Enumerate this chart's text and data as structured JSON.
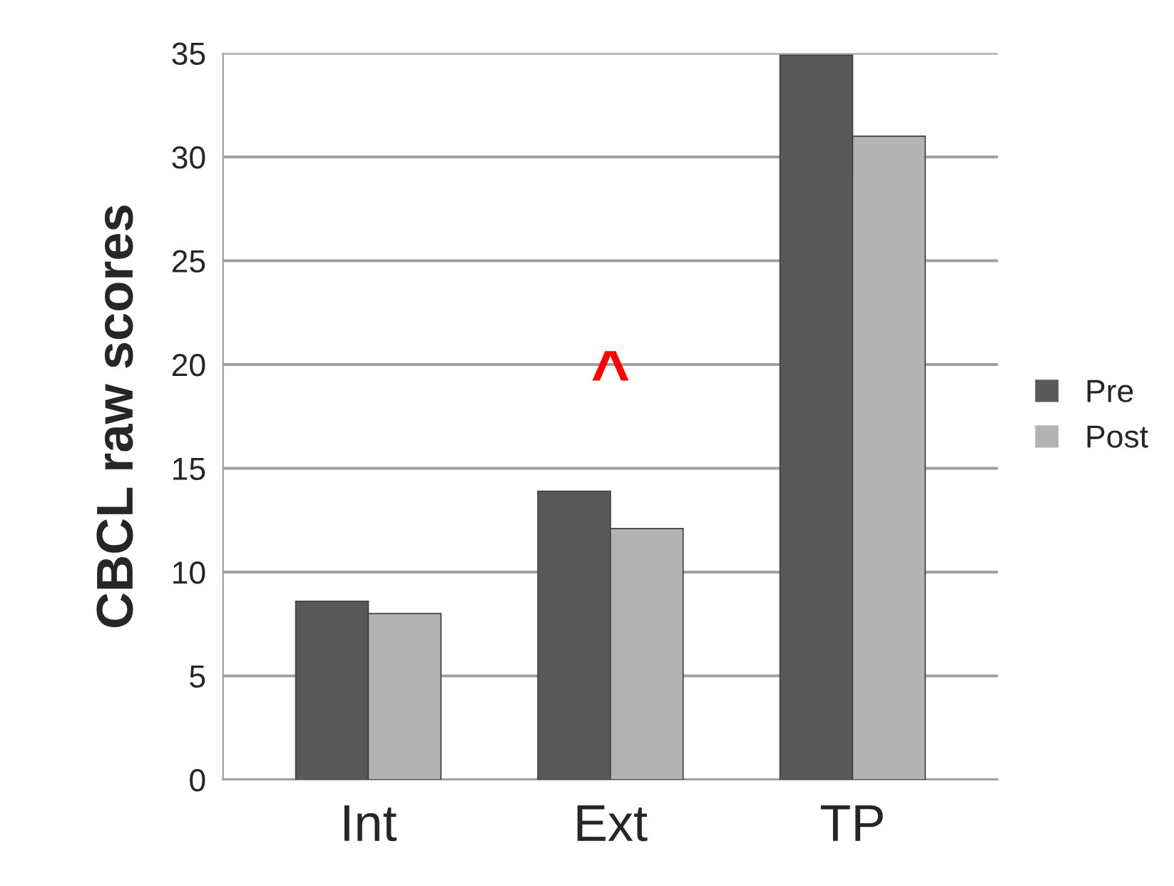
{
  "chart_data": {
    "type": "bar",
    "ylabel": "CBCL raw scores",
    "categories": [
      "Int",
      "Ext",
      "TP"
    ],
    "series": [
      {
        "name": "Pre",
        "color": "#595959",
        "values": [
          8.6,
          13.9,
          34.9
        ]
      },
      {
        "name": "Post",
        "color": "#b3b3b3",
        "values": [
          8.0,
          12.1,
          31.0
        ]
      }
    ],
    "ylim": [
      0,
      35
    ],
    "yticks": [
      0,
      5,
      10,
      15,
      20,
      25,
      30,
      35
    ],
    "grid": "y",
    "legend": "right",
    "annotations": [
      "^"
    ]
  }
}
